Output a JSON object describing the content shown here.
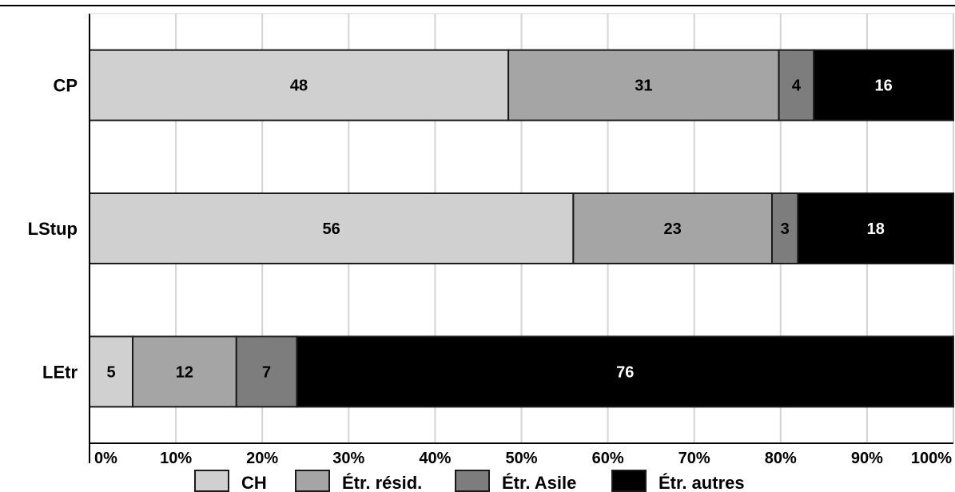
{
  "chart_data": {
    "type": "bar",
    "orientation": "horizontal",
    "stacked": true,
    "percent_scale": true,
    "title": "",
    "xlabel": "",
    "ylabel": "",
    "categories": [
      "CP",
      "LStup",
      "LEtr"
    ],
    "series": [
      {
        "name": "CH",
        "values": [
          48,
          56,
          5
        ],
        "color": "#d0d0d0",
        "label_color": "#000000"
      },
      {
        "name": "Étr. résid.",
        "values": [
          31,
          23,
          12
        ],
        "color": "#a5a5a5",
        "label_color": "#000000"
      },
      {
        "name": "Étr. Asile",
        "values": [
          4,
          3,
          7
        ],
        "color": "#7d7d7d",
        "label_color": "#000000"
      },
      {
        "name": "Étr. autres",
        "values": [
          16,
          18,
          76
        ],
        "color": "#000000",
        "label_color": "#ffffff"
      }
    ],
    "xlim": [
      0,
      100
    ],
    "xticks": [
      "0%",
      "10%",
      "20%",
      "30%",
      "40%",
      "50%",
      "60%",
      "70%",
      "80%",
      "90%",
      "100%"
    ],
    "grid": true,
    "legend_position": "bottom"
  }
}
